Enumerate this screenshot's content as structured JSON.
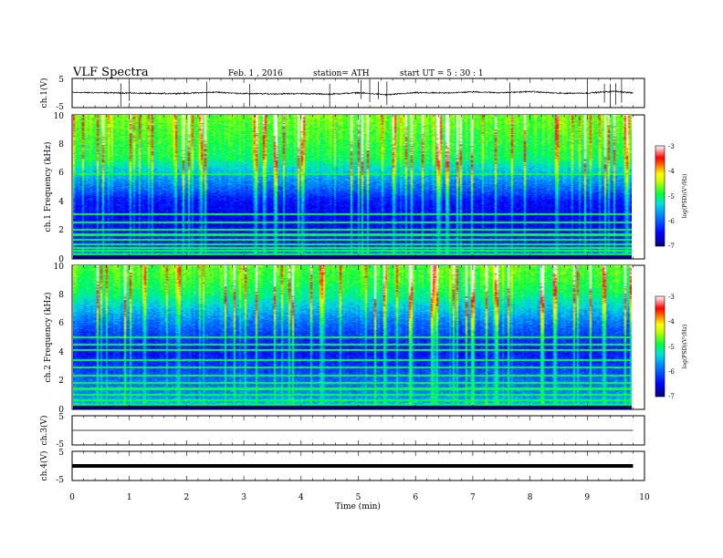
{
  "header": {
    "title": "VLF  Spectra",
    "date": "Feb. 1  , 2016",
    "station": "station= ATH",
    "start": "start  UT =   5  : 30 : 1"
  },
  "chart_data": [
    {
      "type": "line",
      "panel": "ch1-waveform",
      "ylabel": "ch.1(V)",
      "ylim": [
        -5,
        5
      ],
      "yticks": [
        "5",
        "-5"
      ],
      "xlim": [
        0,
        10
      ],
      "x": [
        0,
        0.5,
        1,
        1.5,
        2,
        2.5,
        3,
        3.5,
        4,
        4.5,
        5,
        5.5,
        6,
        6.5,
        7,
        7.5,
        8,
        8.5,
        9,
        9.5,
        9.8
      ],
      "values": [
        0.2,
        0.1,
        0.0,
        -0.2,
        -0.1,
        0.3,
        -0.2,
        -0.3,
        -0.2,
        -0.4,
        0.1,
        -0.6,
        0.1,
        0.0,
        0.4,
        0.1,
        0.5,
        -0.1,
        0.0,
        0.6,
        0.0
      ],
      "spike_times": [
        0.85,
        1.0,
        2.35,
        3.1,
        4.5,
        5.05,
        5.2,
        5.35,
        5.5,
        7.65,
        9.0,
        9.3,
        9.4,
        9.5,
        9.6
      ]
    },
    {
      "type": "heatmap",
      "panel": "ch1-spectrogram",
      "ylabel": "ch.1 Frequency  (kHz)",
      "ylim": [
        0,
        10
      ],
      "yticks": [
        "0",
        "2",
        "4",
        "6",
        "8",
        "10"
      ],
      "xlim": [
        0,
        10
      ],
      "colorbar": {
        "label": "log(PSD)(V²/Hz)",
        "range": [
          -7,
          -3
        ],
        "ticks": [
          "-3",
          "-4",
          "-5",
          "-6",
          "-7"
        ]
      },
      "profile_khz": [
        0,
        1,
        2,
        3,
        4,
        5,
        6,
        7,
        8,
        9,
        10
      ],
      "profile_log_psd": [
        -5.5,
        -6.4,
        -6.5,
        -6.6,
        -6.5,
        -6.0,
        -5.6,
        -5.1,
        -5.0,
        -4.9,
        -4.8
      ],
      "tonal_lines_khz": [
        0.3,
        0.55,
        0.75,
        1.0,
        1.3,
        1.65,
        2.0,
        2.5,
        3.1,
        5.9
      ]
    },
    {
      "type": "heatmap",
      "panel": "ch2-spectrogram",
      "ylabel": "ch.2 Frequency  (kHz)",
      "ylim": [
        0,
        10
      ],
      "yticks": [
        "0",
        "2",
        "4",
        "6",
        "8",
        "10"
      ],
      "xlim": [
        0,
        10
      ],
      "colorbar": {
        "label": "log(PSD)(V²/Hz)",
        "range": [
          -7,
          -3
        ],
        "ticks": [
          "-3",
          "-4",
          "-5",
          "-6",
          "-7"
        ]
      },
      "profile_khz": [
        0,
        1,
        2,
        3,
        4,
        5,
        6,
        7,
        8,
        9,
        10
      ],
      "profile_log_psd": [
        -5.4,
        -5.8,
        -6.0,
        -6.3,
        -6.5,
        -6.3,
        -6.0,
        -5.6,
        -5.2,
        -5.0,
        -4.9
      ],
      "tonal_lines_khz": [
        0.3,
        0.6,
        1.0,
        1.4,
        1.8,
        2.3,
        2.9,
        3.4,
        4.1,
        4.5,
        5.0
      ]
    },
    {
      "type": "line",
      "panel": "ch3-waveform",
      "ylabel": "ch.3(V)",
      "ylim": [
        -5,
        5
      ],
      "yticks": [
        "5",
        "-5"
      ],
      "xlim": [
        0,
        10
      ],
      "x": [
        0,
        9.8
      ],
      "values": [
        0,
        0
      ]
    },
    {
      "type": "line",
      "panel": "ch4-waveform",
      "ylabel": "ch.4(V)",
      "ylim": [
        -5,
        5
      ],
      "yticks": [
        "5",
        "-5"
      ],
      "xlim": [
        0,
        10
      ],
      "x": [
        0,
        9.8
      ],
      "values": [
        0,
        0
      ],
      "xlabel": "Time  (min)",
      "xticks": [
        "0",
        "1",
        "2",
        "3",
        "4",
        "5",
        "6",
        "7",
        "8",
        "9",
        "10"
      ]
    }
  ]
}
